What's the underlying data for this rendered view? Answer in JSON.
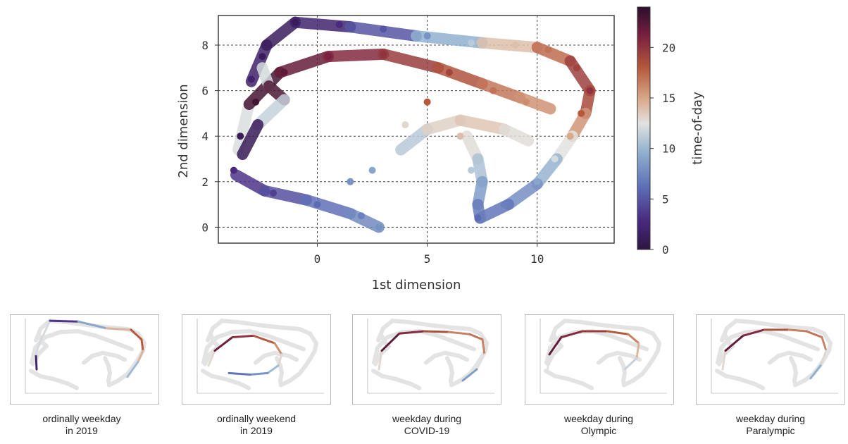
{
  "chart_data": [
    {
      "type": "scatter",
      "title": "",
      "xlabel": "1st dimension",
      "ylabel": "2nd dimension",
      "xlim": [
        -4.5,
        13.5
      ],
      "ylim": [
        -0.7,
        9.3
      ],
      "xticks": [
        0,
        5,
        10
      ],
      "yticks": [
        0,
        2,
        4,
        6,
        8
      ],
      "grid": true,
      "colorbar": {
        "label": "time-of-day",
        "range": [
          0,
          24
        ],
        "ticks": [
          0,
          5,
          10,
          15,
          20
        ],
        "colormap": "twilight_shifted"
      },
      "series": [
        {
          "description_role": "trajectory points colored by time-of-day",
          "points": [
            {
              "x": -1.0,
              "y": 9.0,
              "t": 1
            },
            {
              "x": 1.0,
              "y": 8.9,
              "t": 3
            },
            {
              "x": 3.0,
              "y": 8.7,
              "t": 5
            },
            {
              "x": 5.0,
              "y": 8.4,
              "t": 8
            },
            {
              "x": 7.0,
              "y": 8.1,
              "t": 11
            },
            {
              "x": 9.0,
              "y": 8.0,
              "t": 14
            },
            {
              "x": 10.5,
              "y": 7.8,
              "t": 17
            },
            {
              "x": 11.8,
              "y": 7.0,
              "t": 19
            },
            {
              "x": 12.4,
              "y": 6.0,
              "t": 20
            },
            {
              "x": 12.0,
              "y": 5.0,
              "t": 18
            },
            {
              "x": 11.5,
              "y": 4.0,
              "t": 15
            },
            {
              "x": 10.8,
              "y": 3.0,
              "t": 12
            },
            {
              "x": 10.0,
              "y": 2.0,
              "t": 9
            },
            {
              "x": 8.5,
              "y": 1.0,
              "t": 7
            },
            {
              "x": 7.3,
              "y": 0.4,
              "t": 6
            },
            {
              "x": -3.0,
              "y": 6.5,
              "t": 2
            },
            {
              "x": -2.5,
              "y": 7.5,
              "t": 1
            },
            {
              "x": -3.8,
              "y": 2.5,
              "t": 3
            },
            {
              "x": -3.5,
              "y": 4.0,
              "t": 1
            },
            {
              "x": -2.8,
              "y": 5.5,
              "t": 23
            },
            {
              "x": -1.5,
              "y": 6.8,
              "t": 22
            },
            {
              "x": 0.5,
              "y": 7.5,
              "t": 21
            },
            {
              "x": 3.0,
              "y": 7.6,
              "t": 20
            },
            {
              "x": 6.0,
              "y": 6.8,
              "t": 19
            },
            {
              "x": 8.0,
              "y": 6.0,
              "t": 17
            },
            {
              "x": 9.5,
              "y": 5.5,
              "t": 16
            },
            {
              "x": 5.0,
              "y": 5.5,
              "t": 18
            },
            {
              "x": 4.0,
              "y": 4.5,
              "t": 13
            },
            {
              "x": 2.5,
              "y": 2.5,
              "t": 9
            },
            {
              "x": 6.5,
              "y": 4.0,
              "t": 14
            },
            {
              "x": 7.0,
              "y": 2.5,
              "t": 11
            },
            {
              "x": -2.0,
              "y": 1.5,
              "t": 4
            },
            {
              "x": 0.0,
              "y": 1.0,
              "t": 6
            },
            {
              "x": 2.0,
              "y": 0.5,
              "t": 7
            },
            {
              "x": 2.8,
              "y": 0.0,
              "t": 8
            },
            {
              "x": 1.5,
              "y": 2.0,
              "t": 8
            }
          ]
        }
      ]
    }
  ],
  "panels": [
    {
      "caption_line1": "ordinally weekday",
      "caption_line2": "in 2019"
    },
    {
      "caption_line1": "ordinally weekend",
      "caption_line2": "in 2019"
    },
    {
      "caption_line1": "weekday during",
      "caption_line2": "COVID-19"
    },
    {
      "caption_line1": "weekday during",
      "caption_line2": "Olympic"
    },
    {
      "caption_line1": "weekday during",
      "caption_line2": "Paralympic"
    }
  ],
  "colors": {
    "background_cloud": "#e3e3e3",
    "grid": "#444444",
    "axis": "#333333"
  }
}
